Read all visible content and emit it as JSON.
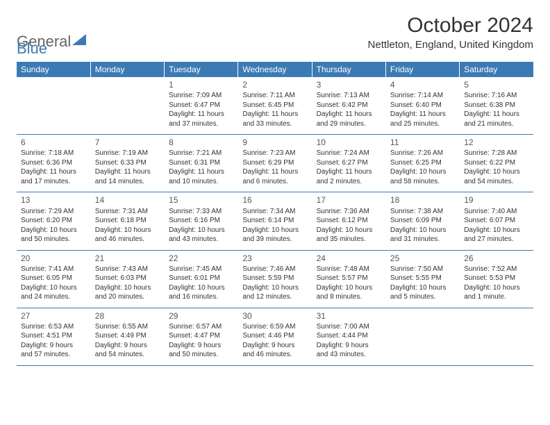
{
  "logo": {
    "text_general": "General",
    "text_blue": "Blue",
    "triangle_color": "#3b7ab5"
  },
  "header": {
    "month_title": "October 2024",
    "location": "Nettleton, England, United Kingdom"
  },
  "colors": {
    "header_bg": "#3b7ab5",
    "header_text": "#ffffff",
    "cell_border": "#3b7ab5",
    "text": "#333333"
  },
  "day_headers": [
    "Sunday",
    "Monday",
    "Tuesday",
    "Wednesday",
    "Thursday",
    "Friday",
    "Saturday"
  ],
  "weeks": [
    [
      null,
      null,
      {
        "n": "1",
        "sr": "Sunrise: 7:09 AM",
        "ss": "Sunset: 6:47 PM",
        "dl": "Daylight: 11 hours and 37 minutes."
      },
      {
        "n": "2",
        "sr": "Sunrise: 7:11 AM",
        "ss": "Sunset: 6:45 PM",
        "dl": "Daylight: 11 hours and 33 minutes."
      },
      {
        "n": "3",
        "sr": "Sunrise: 7:13 AM",
        "ss": "Sunset: 6:42 PM",
        "dl": "Daylight: 11 hours and 29 minutes."
      },
      {
        "n": "4",
        "sr": "Sunrise: 7:14 AM",
        "ss": "Sunset: 6:40 PM",
        "dl": "Daylight: 11 hours and 25 minutes."
      },
      {
        "n": "5",
        "sr": "Sunrise: 7:16 AM",
        "ss": "Sunset: 6:38 PM",
        "dl": "Daylight: 11 hours and 21 minutes."
      }
    ],
    [
      {
        "n": "6",
        "sr": "Sunrise: 7:18 AM",
        "ss": "Sunset: 6:36 PM",
        "dl": "Daylight: 11 hours and 17 minutes."
      },
      {
        "n": "7",
        "sr": "Sunrise: 7:19 AM",
        "ss": "Sunset: 6:33 PM",
        "dl": "Daylight: 11 hours and 14 minutes."
      },
      {
        "n": "8",
        "sr": "Sunrise: 7:21 AM",
        "ss": "Sunset: 6:31 PM",
        "dl": "Daylight: 11 hours and 10 minutes."
      },
      {
        "n": "9",
        "sr": "Sunrise: 7:23 AM",
        "ss": "Sunset: 6:29 PM",
        "dl": "Daylight: 11 hours and 6 minutes."
      },
      {
        "n": "10",
        "sr": "Sunrise: 7:24 AM",
        "ss": "Sunset: 6:27 PM",
        "dl": "Daylight: 11 hours and 2 minutes."
      },
      {
        "n": "11",
        "sr": "Sunrise: 7:26 AM",
        "ss": "Sunset: 6:25 PM",
        "dl": "Daylight: 10 hours and 58 minutes."
      },
      {
        "n": "12",
        "sr": "Sunrise: 7:28 AM",
        "ss": "Sunset: 6:22 PM",
        "dl": "Daylight: 10 hours and 54 minutes."
      }
    ],
    [
      {
        "n": "13",
        "sr": "Sunrise: 7:29 AM",
        "ss": "Sunset: 6:20 PM",
        "dl": "Daylight: 10 hours and 50 minutes."
      },
      {
        "n": "14",
        "sr": "Sunrise: 7:31 AM",
        "ss": "Sunset: 6:18 PM",
        "dl": "Daylight: 10 hours and 46 minutes."
      },
      {
        "n": "15",
        "sr": "Sunrise: 7:33 AM",
        "ss": "Sunset: 6:16 PM",
        "dl": "Daylight: 10 hours and 43 minutes."
      },
      {
        "n": "16",
        "sr": "Sunrise: 7:34 AM",
        "ss": "Sunset: 6:14 PM",
        "dl": "Daylight: 10 hours and 39 minutes."
      },
      {
        "n": "17",
        "sr": "Sunrise: 7:36 AM",
        "ss": "Sunset: 6:12 PM",
        "dl": "Daylight: 10 hours and 35 minutes."
      },
      {
        "n": "18",
        "sr": "Sunrise: 7:38 AM",
        "ss": "Sunset: 6:09 PM",
        "dl": "Daylight: 10 hours and 31 minutes."
      },
      {
        "n": "19",
        "sr": "Sunrise: 7:40 AM",
        "ss": "Sunset: 6:07 PM",
        "dl": "Daylight: 10 hours and 27 minutes."
      }
    ],
    [
      {
        "n": "20",
        "sr": "Sunrise: 7:41 AM",
        "ss": "Sunset: 6:05 PM",
        "dl": "Daylight: 10 hours and 24 minutes."
      },
      {
        "n": "21",
        "sr": "Sunrise: 7:43 AM",
        "ss": "Sunset: 6:03 PM",
        "dl": "Daylight: 10 hours and 20 minutes."
      },
      {
        "n": "22",
        "sr": "Sunrise: 7:45 AM",
        "ss": "Sunset: 6:01 PM",
        "dl": "Daylight: 10 hours and 16 minutes."
      },
      {
        "n": "23",
        "sr": "Sunrise: 7:46 AM",
        "ss": "Sunset: 5:59 PM",
        "dl": "Daylight: 10 hours and 12 minutes."
      },
      {
        "n": "24",
        "sr": "Sunrise: 7:48 AM",
        "ss": "Sunset: 5:57 PM",
        "dl": "Daylight: 10 hours and 8 minutes."
      },
      {
        "n": "25",
        "sr": "Sunrise: 7:50 AM",
        "ss": "Sunset: 5:55 PM",
        "dl": "Daylight: 10 hours and 5 minutes."
      },
      {
        "n": "26",
        "sr": "Sunrise: 7:52 AM",
        "ss": "Sunset: 5:53 PM",
        "dl": "Daylight: 10 hours and 1 minute."
      }
    ],
    [
      {
        "n": "27",
        "sr": "Sunrise: 6:53 AM",
        "ss": "Sunset: 4:51 PM",
        "dl": "Daylight: 9 hours and 57 minutes."
      },
      {
        "n": "28",
        "sr": "Sunrise: 6:55 AM",
        "ss": "Sunset: 4:49 PM",
        "dl": "Daylight: 9 hours and 54 minutes."
      },
      {
        "n": "29",
        "sr": "Sunrise: 6:57 AM",
        "ss": "Sunset: 4:47 PM",
        "dl": "Daylight: 9 hours and 50 minutes."
      },
      {
        "n": "30",
        "sr": "Sunrise: 6:59 AM",
        "ss": "Sunset: 4:46 PM",
        "dl": "Daylight: 9 hours and 46 minutes."
      },
      {
        "n": "31",
        "sr": "Sunrise: 7:00 AM",
        "ss": "Sunset: 4:44 PM",
        "dl": "Daylight: 9 hours and 43 minutes."
      },
      null,
      null
    ]
  ]
}
